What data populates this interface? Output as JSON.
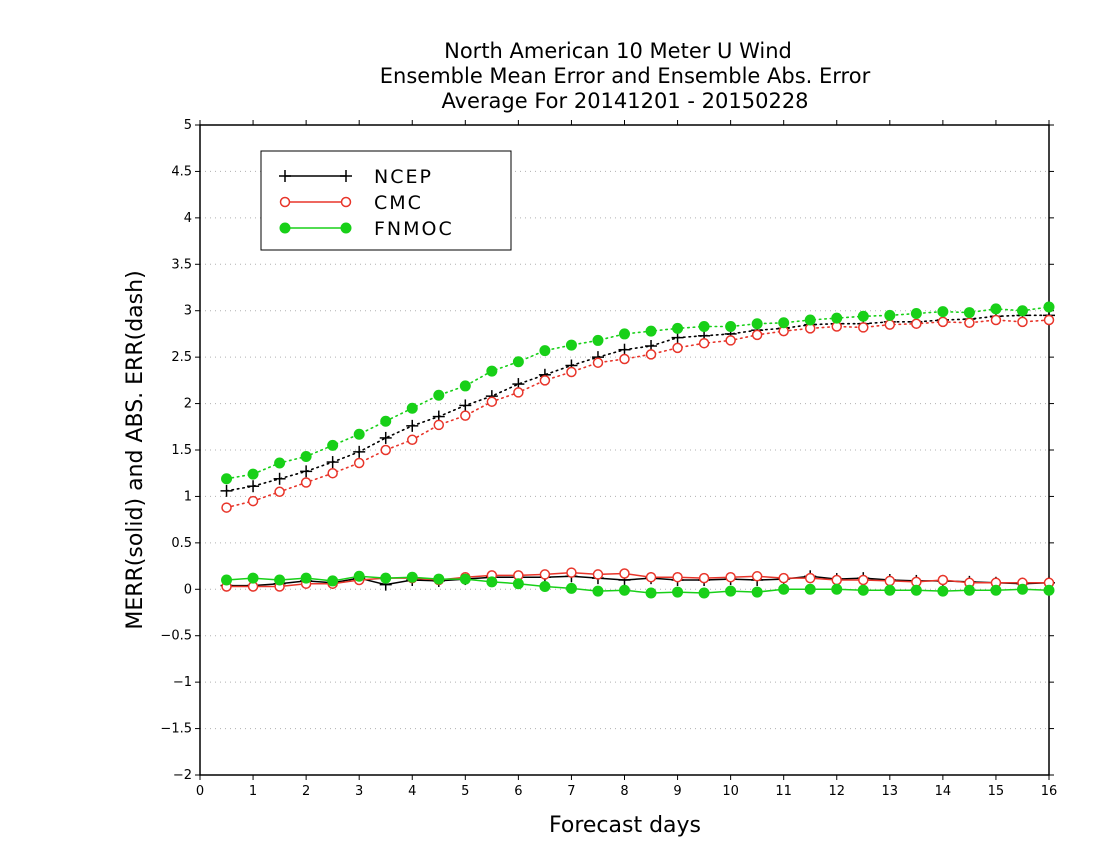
{
  "chart_data": {
    "type": "line",
    "title": [
      "North American 10 Meter U Wind",
      "Ensemble Mean Error and Ensemble Abs. Error",
      "Average For 20141201 - 20150228"
    ],
    "xlabel": "Forecast days",
    "ylabel": "MERR(solid) and ABS. ERR(dash)",
    "xlim": [
      0,
      16
    ],
    "ylim": [
      -2,
      5
    ],
    "xticks": [
      "0",
      "1",
      "2",
      "3",
      "4",
      "5",
      "6",
      "7",
      "8",
      "9",
      "10",
      "11",
      "12",
      "13",
      "14",
      "15",
      "16"
    ],
    "yticks": [
      "-2",
      "-1.5",
      "-1",
      "-0.5",
      "0",
      "0.5",
      "1",
      "1.5",
      "2",
      "2.5",
      "3",
      "3.5",
      "4",
      "4.5",
      "5"
    ],
    "grid": true,
    "legend_position": "top-left",
    "x": [
      0.5,
      1,
      1.5,
      2,
      2.5,
      3,
      3.5,
      4,
      4.5,
      5,
      5.5,
      6,
      6.5,
      7,
      7.5,
      8,
      8.5,
      9,
      9.5,
      10,
      10.5,
      11,
      11.5,
      12,
      12.5,
      13,
      13.5,
      14,
      14.5,
      15,
      15.5,
      16
    ],
    "series": [
      {
        "name": "NCEP",
        "color": "#000000",
        "marker": "plus",
        "abs_err": [
          1.06,
          1.11,
          1.19,
          1.27,
          1.37,
          1.48,
          1.63,
          1.76,
          1.86,
          1.98,
          2.08,
          2.21,
          2.31,
          2.41,
          2.5,
          2.58,
          2.62,
          2.71,
          2.73,
          2.75,
          2.79,
          2.81,
          2.85,
          2.86,
          2.86,
          2.88,
          2.88,
          2.9,
          2.91,
          2.94,
          2.95,
          2.95
        ],
        "mean_err": [
          0.04,
          0.04,
          0.06,
          0.09,
          0.07,
          0.12,
          0.05,
          0.1,
          0.09,
          0.11,
          0.13,
          0.13,
          0.13,
          0.14,
          0.12,
          0.1,
          0.12,
          0.1,
          0.1,
          0.11,
          0.1,
          0.11,
          0.14,
          0.11,
          0.12,
          0.1,
          0.09,
          0.09,
          0.08,
          0.07,
          0.06,
          0.07
        ]
      },
      {
        "name": "CMC",
        "color": "#e8352a",
        "marker": "open-circle",
        "abs_err": [
          0.88,
          0.95,
          1.05,
          1.15,
          1.25,
          1.36,
          1.5,
          1.61,
          1.77,
          1.87,
          2.02,
          2.12,
          2.25,
          2.34,
          2.44,
          2.48,
          2.53,
          2.6,
          2.65,
          2.68,
          2.74,
          2.78,
          2.81,
          2.83,
          2.82,
          2.85,
          2.86,
          2.88,
          2.87,
          2.9,
          2.88,
          2.9
        ],
        "mean_err": [
          0.03,
          0.03,
          0.03,
          0.06,
          0.06,
          0.1,
          0.12,
          0.12,
          0.1,
          0.13,
          0.15,
          0.15,
          0.16,
          0.18,
          0.16,
          0.17,
          0.13,
          0.13,
          0.12,
          0.13,
          0.14,
          0.12,
          0.12,
          0.1,
          0.1,
          0.09,
          0.08,
          0.1,
          0.07,
          0.07,
          0.07,
          0.07
        ]
      },
      {
        "name": "FNMOC",
        "color": "#18d018",
        "marker": "filled-circle",
        "abs_err": [
          1.19,
          1.24,
          1.36,
          1.43,
          1.55,
          1.67,
          1.81,
          1.95,
          2.09,
          2.19,
          2.35,
          2.45,
          2.57,
          2.63,
          2.68,
          2.75,
          2.78,
          2.81,
          2.83,
          2.83,
          2.86,
          2.87,
          2.9,
          2.92,
          2.94,
          2.95,
          2.97,
          2.99,
          2.98,
          3.02,
          3.0,
          3.04
        ],
        "mean_err": [
          0.1,
          0.12,
          0.1,
          0.12,
          0.09,
          0.14,
          0.12,
          0.13,
          0.11,
          0.11,
          0.08,
          0.06,
          0.03,
          0.01,
          -0.02,
          -0.01,
          -0.04,
          -0.03,
          -0.04,
          -0.02,
          -0.03,
          0.0,
          0.0,
          0.0,
          -0.01,
          -0.01,
          -0.01,
          -0.02,
          -0.01,
          -0.01,
          0.0,
          -0.01
        ]
      }
    ]
  }
}
